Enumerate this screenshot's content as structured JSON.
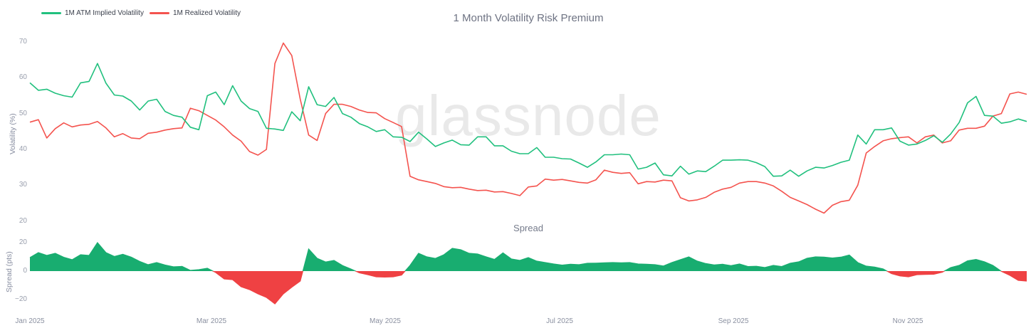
{
  "title": "1 Month Volatility Risk Premium",
  "watermark": "glassnode",
  "colors": {
    "implied_line": "#21c07e",
    "realized_line": "#f4534e",
    "spread_positive": "#18ad70",
    "spread_negative": "#ef4143",
    "title_text": "#6e7383",
    "axis_text": "#989eac",
    "watermark_text": "#e9e9e9"
  },
  "chart_data": [
    {
      "type": "line",
      "title": "1 Month Volatility Risk Premium",
      "ylabel": "Volatility (%)",
      "ylim": [
        20,
        70
      ],
      "ytick_labels": [
        "70",
        "60",
        "50",
        "40",
        "30",
        "20"
      ],
      "xticks": [
        "Jan 2025",
        "Mar 2025",
        "May 2025",
        "Jul 2025",
        "Sep 2025",
        "Nov 2025"
      ],
      "x_domain": "Jan 2025 through mid-Dec 2025, 119 evenly spaced samples (~3 days apart)",
      "grid": false,
      "legend_position": "top-left",
      "series": [
        {
          "name": "1M ATM Implied Volatility",
          "color": "#21c07e",
          "values": [
            58.6,
            56.5,
            56.8,
            55.7,
            55.0,
            54.6,
            58.6,
            59.0,
            64.0,
            58.5,
            55.2,
            54.9,
            53.5,
            51.0,
            53.5,
            54.0,
            50.6,
            49.5,
            49.0,
            46.2,
            45.5,
            55.0,
            56.0,
            52.5,
            57.8,
            53.5,
            51.4,
            50.6,
            45.9,
            45.7,
            45.3,
            50.5,
            48.0,
            57.5,
            52.5,
            52.0,
            54.5,
            50.0,
            49.0,
            47.2,
            46.3,
            45.0,
            45.5,
            43.5,
            43.4,
            42.2,
            44.8,
            42.9,
            40.8,
            41.8,
            42.6,
            41.3,
            41.2,
            43.5,
            43.5,
            41.0,
            41.0,
            39.5,
            38.8,
            38.8,
            40.5,
            37.8,
            37.8,
            37.4,
            37.3,
            36.2,
            35.0,
            36.5,
            38.5,
            38.5,
            38.7,
            38.5,
            34.5,
            35.0,
            36.2,
            32.9,
            32.6,
            35.3,
            33.1,
            34.0,
            33.8,
            35.3,
            37.0,
            37.0,
            37.1,
            37.0,
            36.3,
            35.2,
            32.5,
            32.6,
            34.2,
            32.5,
            34.0,
            35.0,
            34.8,
            35.5,
            36.4,
            37.0,
            44.0,
            41.5,
            45.5,
            45.5,
            46.0,
            42.3,
            41.2,
            41.5,
            42.5,
            43.8,
            42.0,
            44.3,
            47.5,
            53.0,
            54.8,
            49.5,
            49.3,
            47.3,
            47.7,
            48.5,
            47.8
          ]
        },
        {
          "name": "1M Realized Volatility",
          "color": "#f4534e",
          "values": [
            47.6,
            48.3,
            43.2,
            45.8,
            47.4,
            46.3,
            46.8,
            47.0,
            47.8,
            46.0,
            43.5,
            44.4,
            43.2,
            43.0,
            44.5,
            44.8,
            45.4,
            45.8,
            46.0,
            51.5,
            50.8,
            49.5,
            48.2,
            46.3,
            44.0,
            42.3,
            39.4,
            38.4,
            40.0,
            64.0,
            69.7,
            66.2,
            54.0,
            44.0,
            42.5,
            50.0,
            52.6,
            52.6,
            52.0,
            51.0,
            50.3,
            50.2,
            48.6,
            47.5,
            46.4,
            32.5,
            31.5,
            31.0,
            30.5,
            29.6,
            29.3,
            29.4,
            28.9,
            28.5,
            28.6,
            28.1,
            28.2,
            27.7,
            27.1,
            29.5,
            29.8,
            31.7,
            31.4,
            31.6,
            31.2,
            30.8,
            30.6,
            31.5,
            34.2,
            33.6,
            33.3,
            33.5,
            30.4,
            31.0,
            30.9,
            31.4,
            31.2,
            26.5,
            25.6,
            25.9,
            26.6,
            28.0,
            28.9,
            29.4,
            30.6,
            31.0,
            31.0,
            30.6,
            29.8,
            28.3,
            26.6,
            25.6,
            24.6,
            23.3,
            22.2,
            24.4,
            25.4,
            25.8,
            30.0,
            39.0,
            40.8,
            42.4,
            43.0,
            43.3,
            43.5,
            41.8,
            43.5,
            44.0,
            41.8,
            42.4,
            45.4,
            45.9,
            45.9,
            46.5,
            49.3,
            50.0,
            55.5,
            56.0,
            55.4
          ]
        }
      ]
    },
    {
      "type": "area",
      "title": "Spread",
      "ylabel": "Spread (pts)",
      "ylim": [
        -25,
        25
      ],
      "ytick_labels": [
        "20",
        "0",
        "−20"
      ],
      "positive_color": "#18ad70",
      "negative_color": "#ef4143",
      "baseline": 0,
      "values": [
        9.5,
        13.0,
        11.0,
        12.5,
        9.7,
        8.0,
        11.5,
        11.0,
        20.0,
        13.0,
        10.3,
        11.8,
        9.8,
        6.8,
        4.5,
        6.0,
        4.3,
        3.0,
        3.3,
        0.5,
        1.0,
        2.0,
        -1.0,
        -5.5,
        -6.0,
        -11.0,
        -13.0,
        -16.0,
        -18.5,
        -23.0,
        -16.0,
        -11.3,
        -7.0,
        15.5,
        9.0,
        6.4,
        7.5,
        3.9,
        1.5,
        -1.2,
        -2.5,
        -4.0,
        -4.2,
        -4.0,
        -2.8,
        4.0,
        12.5,
        10.0,
        8.9,
        11.5,
        16.0,
        15.0,
        12.5,
        12.0,
        10.0,
        8.2,
        12.8,
        8.5,
        7.5,
        9.5,
        7.0,
        6.0,
        5.0,
        4.2,
        4.8,
        4.5,
        5.5,
        5.6,
        5.8,
        6.0,
        5.8,
        6.0,
        5.0,
        4.8,
        4.5,
        3.6,
        6.0,
        8.0,
        10.0,
        7.0,
        5.3,
        4.3,
        4.8,
        3.8,
        5.0,
        3.2,
        3.4,
        2.5,
        4.0,
        3.2,
        5.5,
        6.5,
        9.0,
        10.0,
        9.8,
        9.2,
        9.8,
        11.3,
        6.0,
        3.5,
        2.8,
        1.5,
        -1.8,
        -3.4,
        -4.0,
        -2.5,
        -2.3,
        -2.2,
        -0.8,
        2.5,
        4.0,
        7.2,
        8.2,
        6.5,
        4.0,
        -0.2,
        -3.0,
        -6.5,
        -7.0
      ]
    }
  ]
}
